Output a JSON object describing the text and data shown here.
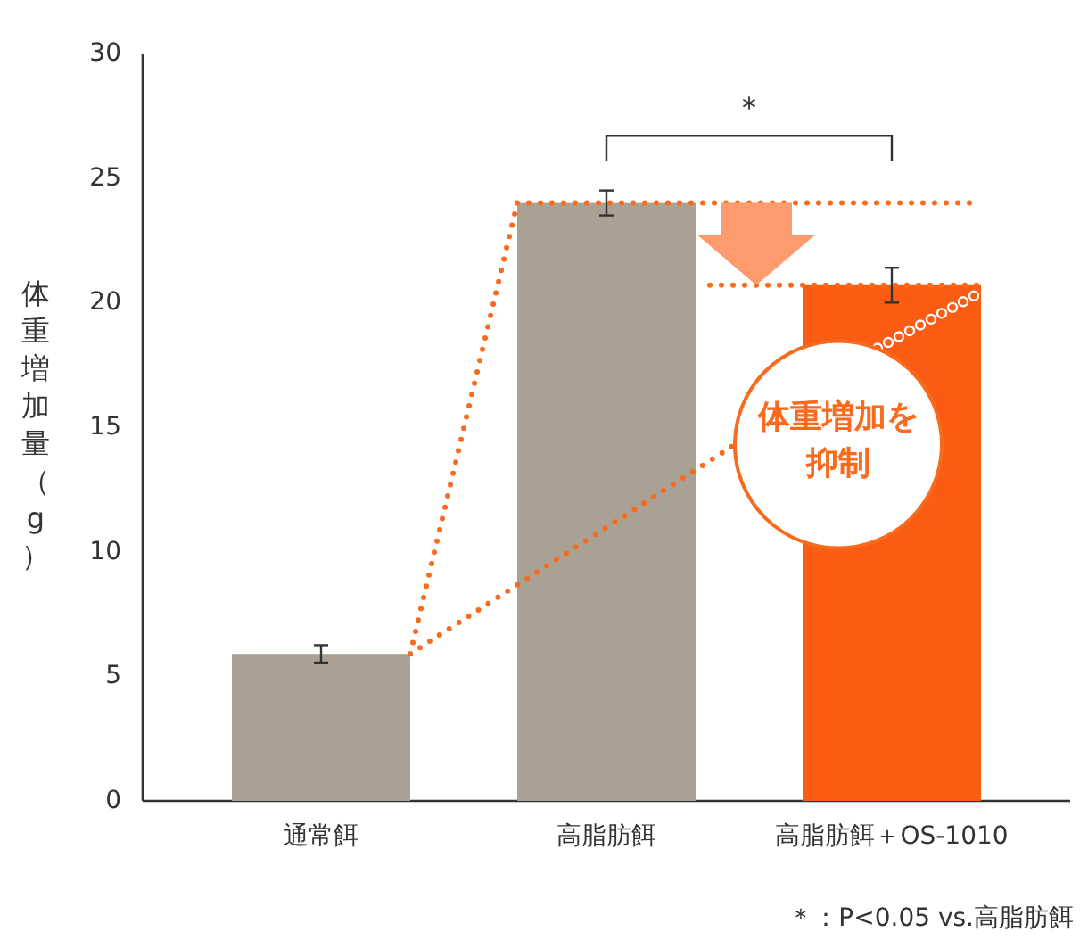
{
  "chart_data": {
    "type": "bar",
    "ylabel": "体重増加量（g）",
    "categories": [
      "通常餌",
      "高脂肪餌",
      "高脂肪餌＋OS-1010"
    ],
    "values": [
      5.9,
      24.0,
      20.7
    ],
    "colors": [
      "#a9a194",
      "#a9a194",
      "#fa5c14"
    ],
    "errors": [
      0.35,
      0.5,
      0.7
    ],
    "ref_lines": [
      {
        "axis": "y",
        "value": 24.0,
        "color": "#f96a1c",
        "line_style": "dotted"
      },
      {
        "axis": "y",
        "value": 20.7,
        "color": "#f96a1c",
        "line_style": "dotted"
      }
    ],
    "ylim": [
      0,
      30
    ],
    "yticks": [
      0,
      5,
      10,
      15,
      20,
      25,
      30
    ],
    "grid": false,
    "annotations": [
      "*",
      "体重増加を抑制",
      "＊：P<0.05 vs.高脂肪餌"
    ]
  }
}
